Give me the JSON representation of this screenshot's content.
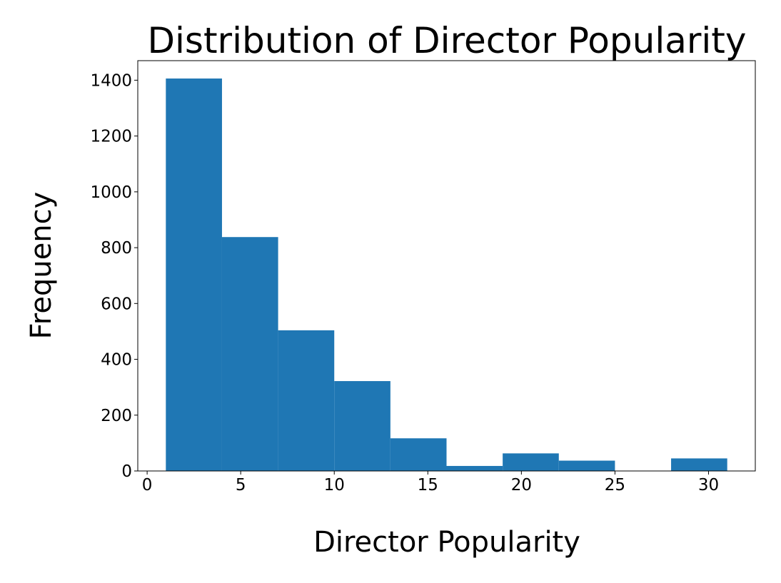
{
  "chart_data": {
    "type": "bar",
    "title": "Distribution of Director Popularity",
    "xlabel": "Director Popularity",
    "ylabel": "Frequency",
    "bins": [
      {
        "x0": 1,
        "x1": 4,
        "count": 1406
      },
      {
        "x0": 4,
        "x1": 7,
        "count": 838
      },
      {
        "x0": 7,
        "x1": 10,
        "count": 504
      },
      {
        "x0": 10,
        "x1": 13,
        "count": 322
      },
      {
        "x0": 13,
        "x1": 16,
        "count": 117
      },
      {
        "x0": 16,
        "x1": 19,
        "count": 18
      },
      {
        "x0": 19,
        "x1": 22,
        "count": 63
      },
      {
        "x0": 22,
        "x1": 25,
        "count": 37
      },
      {
        "x0": 25,
        "x1": 28,
        "count": 0
      },
      {
        "x0": 28,
        "x1": 31,
        "count": 45
      }
    ],
    "xlim": [
      -0.5,
      32.5
    ],
    "ylim": [
      0,
      1470
    ],
    "x_ticks": [
      0,
      5,
      10,
      15,
      20,
      25,
      30
    ],
    "y_ticks": [
      0,
      200,
      400,
      600,
      800,
      1000,
      1200,
      1400
    ],
    "grid": false,
    "bar_color": "#1f77b4"
  }
}
